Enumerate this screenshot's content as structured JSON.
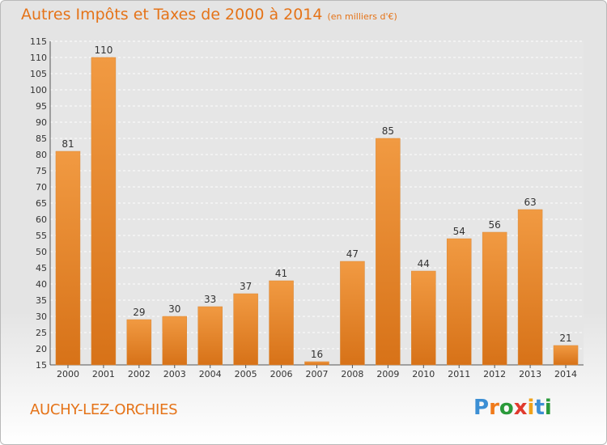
{
  "title": "Autres Impôts et Taxes de 2000 à 2014",
  "unit": "(en milliers d'€)",
  "commune": "AUCHY-LEZ-ORCHIES",
  "logo": {
    "letters": [
      "P",
      "r",
      "o",
      "x",
      "i",
      "t",
      "i"
    ],
    "colors": [
      "#3c8fd4",
      "#f07a1a",
      "#2a9a3a",
      "#e03a2e",
      "#f0a21a",
      "#3c8fd4",
      "#2a9a3a"
    ]
  },
  "colors": {
    "bar": "#f19a42",
    "bar_dark": "#d77218",
    "accent": "#e57318"
  },
  "chart_data": {
    "type": "bar",
    "categories": [
      "2000",
      "2001",
      "2002",
      "2003",
      "2004",
      "2005",
      "2006",
      "2007",
      "2008",
      "2009",
      "2010",
      "2011",
      "2012",
      "2013",
      "2014"
    ],
    "values": [
      81,
      110,
      29,
      30,
      33,
      37,
      41,
      16,
      47,
      85,
      44,
      54,
      56,
      63,
      21
    ],
    "ylim": [
      15,
      115
    ],
    "yticks": [
      15,
      20,
      25,
      30,
      35,
      40,
      45,
      50,
      55,
      60,
      65,
      70,
      75,
      80,
      85,
      90,
      95,
      100,
      105,
      110,
      115
    ],
    "grid": true
  }
}
